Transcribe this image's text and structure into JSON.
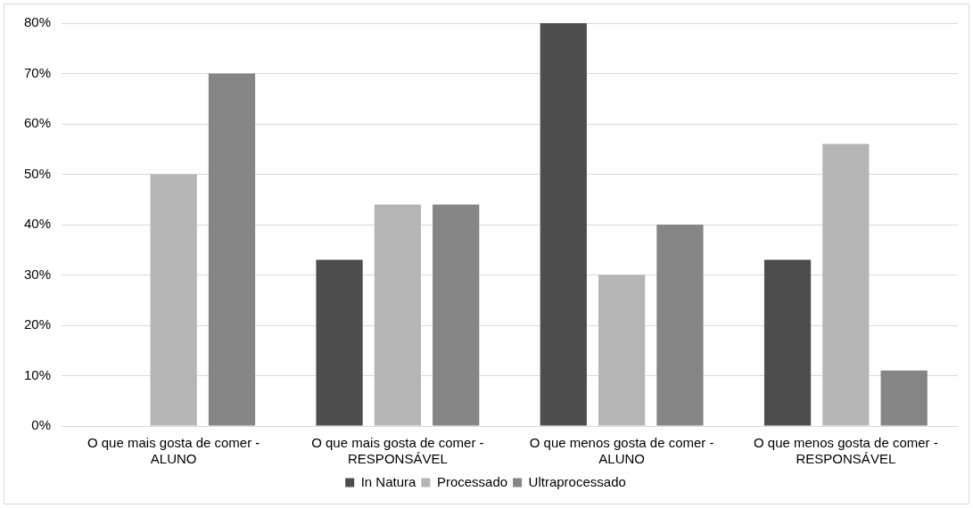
{
  "chart_data": {
    "type": "bar",
    "categories": [
      "O que mais gosta de comer - ALUNO",
      "O que mais gosta de comer - RESPONSÁVEL",
      "O que menos gosta de comer - ALUNO",
      "O que menos gosta de comer - RESPONSÁVEL"
    ],
    "series": [
      {
        "name": "In Natura",
        "color": "#4d4d4d",
        "values": [
          0,
          33,
          80,
          33
        ]
      },
      {
        "name": "Processado",
        "color": "#b5b5b5",
        "values": [
          50,
          44,
          30,
          56
        ]
      },
      {
        "name": "Ultraprocessado",
        "color": "#858585",
        "values": [
          70,
          44,
          40,
          11
        ]
      }
    ],
    "ylim": [
      0,
      80
    ],
    "yticks": [
      {
        "value": 0,
        "label": "0%"
      },
      {
        "value": 10,
        "label": "10%"
      },
      {
        "value": 20,
        "label": "20%"
      },
      {
        "value": 30,
        "label": "30%"
      },
      {
        "value": 40,
        "label": "40%"
      },
      {
        "value": 50,
        "label": "50%"
      },
      {
        "value": 60,
        "label": "60%"
      },
      {
        "value": 70,
        "label": "70%"
      },
      {
        "value": 80,
        "label": "80%"
      }
    ],
    "grid": "y",
    "legend": "bottom"
  }
}
